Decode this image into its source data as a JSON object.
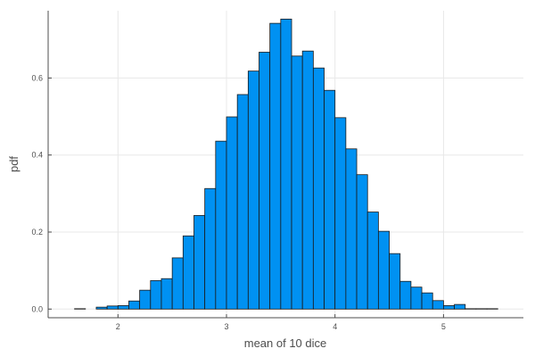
{
  "chart_data": {
    "type": "bar",
    "subtype": "histogram",
    "title": "",
    "xlabel": "mean of 10 dice",
    "ylabel": "pdf",
    "xlim": [
      1.4,
      5.75
    ],
    "ylim": [
      -0.02,
      0.775
    ],
    "x_ticks": [
      2,
      3,
      4,
      5
    ],
    "x_tick_labels": [
      "2",
      "3",
      "4",
      "5"
    ],
    "y_ticks": [
      0.0,
      0.2,
      0.4,
      0.6
    ],
    "y_tick_labels": [
      "0.0",
      "0.2",
      "0.4",
      "0.6"
    ],
    "grid": true,
    "legend": "none",
    "bin_width": 0.1,
    "bin_edges": [
      1.6,
      1.7,
      1.8,
      1.9,
      2.0,
      2.1,
      2.2,
      2.3,
      2.4,
      2.5,
      2.6,
      2.7,
      2.8,
      2.9,
      3.0,
      3.1,
      3.2,
      3.3,
      3.4,
      3.5,
      3.6,
      3.7,
      3.8,
      3.9,
      4.0,
      4.1,
      4.2,
      4.3,
      4.4,
      4.5,
      4.6,
      4.7,
      4.8,
      4.9,
      5.0,
      5.1,
      5.2,
      5.3,
      5.4,
      5.5
    ],
    "values": [
      0.001,
      0.0,
      0.005,
      0.008,
      0.009,
      0.021,
      0.049,
      0.074,
      0.079,
      0.133,
      0.19,
      0.243,
      0.313,
      0.436,
      0.499,
      0.557,
      0.618,
      0.667,
      0.742,
      0.753,
      0.657,
      0.67,
      0.626,
      0.568,
      0.497,
      0.416,
      0.349,
      0.252,
      0.202,
      0.144,
      0.072,
      0.057,
      0.042,
      0.022,
      0.009,
      0.012,
      0.001,
      0.001,
      0.001
    ],
    "series": [
      {
        "name": "y1",
        "color": "#0091f2"
      }
    ]
  },
  "colors": {
    "bar_fill": "#0091f2",
    "bar_stroke": "#1a1a1a",
    "grid": "#e8e8e8",
    "axis": "#4d4d4d",
    "text": "#4d4d4d"
  }
}
